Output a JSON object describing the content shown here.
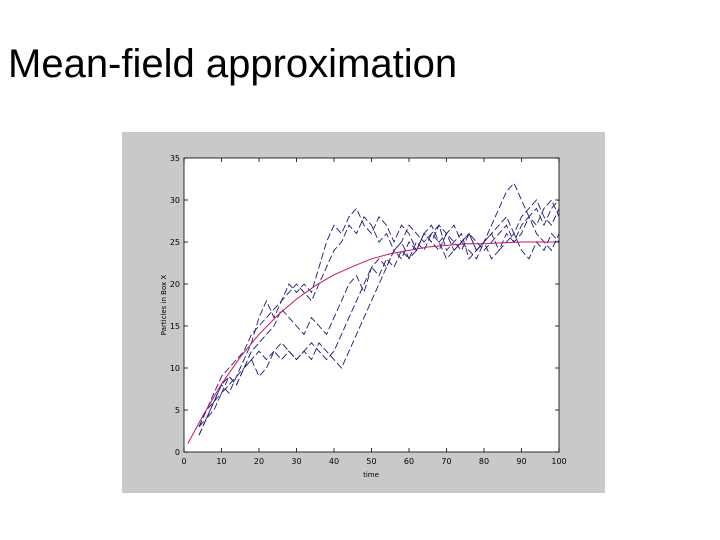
{
  "slide": {
    "title": "Mean-field approximation"
  },
  "chart_data": {
    "type": "line",
    "title": "",
    "xlabel": "time",
    "ylabel": "Particles in Box X",
    "xlim": [
      0,
      100
    ],
    "ylim": [
      0,
      35
    ],
    "xticks": [
      0,
      10,
      20,
      30,
      40,
      50,
      60,
      70,
      80,
      90,
      100
    ],
    "yticks": [
      0,
      5,
      10,
      15,
      20,
      25,
      30,
      35
    ],
    "grid": false,
    "legend": "none",
    "colors": {
      "simulations": "#1a1a7a",
      "mean_field": "#c8185a",
      "panel": "#c9c9c9",
      "plot": "#ffffff"
    },
    "series": [
      {
        "style": "dashed",
        "x": [
          4,
          6,
          8,
          10,
          12,
          14,
          16,
          18,
          20,
          22,
          24,
          26,
          28,
          30,
          32,
          34,
          36,
          38,
          40,
          42,
          44,
          46,
          48,
          50,
          52,
          54,
          56,
          58,
          60,
          62,
          64,
          66,
          68,
          70,
          72,
          74,
          76,
          78,
          80,
          82,
          84,
          86,
          88,
          90,
          92,
          94,
          96,
          98,
          100
        ],
        "y": [
          2,
          4,
          6,
          8,
          7,
          9,
          11,
          13,
          16,
          18,
          16,
          18,
          20,
          19,
          20,
          19,
          22,
          25,
          27,
          26,
          28,
          29,
          27,
          26,
          28,
          27,
          25,
          27,
          26,
          24,
          26,
          27,
          25,
          26,
          27,
          25,
          26,
          24,
          25,
          27,
          29,
          31,
          32,
          30,
          28,
          27,
          29,
          30,
          28
        ]
      },
      {
        "style": "dashed",
        "x": [
          4,
          6,
          8,
          10,
          12,
          14,
          16,
          18,
          20,
          22,
          24,
          26,
          28,
          30,
          32,
          34,
          36,
          38,
          40,
          42,
          44,
          46,
          48,
          50,
          52,
          54,
          56,
          58,
          60,
          62,
          64,
          66,
          68,
          70,
          72,
          74,
          76,
          78,
          80,
          82,
          84,
          86,
          88,
          90,
          92,
          94,
          96,
          98,
          100
        ],
        "y": [
          3,
          5,
          7,
          9,
          10,
          11,
          12,
          14,
          15,
          16,
          17,
          18,
          19,
          20,
          19,
          18,
          20,
          22,
          24,
          25,
          27,
          26,
          28,
          27,
          25,
          26,
          24,
          25,
          27,
          26,
          25,
          26,
          27,
          24,
          25,
          26,
          23,
          24,
          25,
          26,
          27,
          28,
          26,
          28,
          29,
          30,
          28,
          27,
          29
        ]
      },
      {
        "style": "dashed",
        "x": [
          4,
          6,
          8,
          10,
          12,
          14,
          16,
          18,
          20,
          22,
          24,
          26,
          28,
          30,
          32,
          34,
          36,
          38,
          40,
          42,
          44,
          46,
          48,
          50,
          52,
          54,
          56,
          58,
          60,
          62,
          64,
          66,
          68,
          70,
          72,
          74,
          76,
          78,
          80,
          82,
          84,
          86,
          88,
          90,
          92,
          94,
          96,
          98,
          100
        ],
        "y": [
          3,
          4,
          6,
          7,
          9,
          8,
          10,
          12,
          13,
          14,
          15,
          17,
          16,
          15,
          14,
          16,
          15,
          14,
          16,
          18,
          20,
          21,
          19,
          22,
          23,
          22,
          24,
          25,
          23,
          24,
          26,
          25,
          24,
          26,
          25,
          24,
          26,
          25,
          24,
          25,
          26,
          27,
          25,
          26,
          28,
          29,
          27,
          29,
          30
        ]
      },
      {
        "style": "dashed",
        "x": [
          4,
          6,
          8,
          10,
          12,
          14,
          16,
          18,
          20,
          22,
          24,
          26,
          28,
          30,
          32,
          34,
          36,
          38,
          40,
          42,
          44,
          46,
          48,
          50,
          52,
          54,
          56,
          58,
          60,
          62,
          64,
          66,
          68,
          70,
          72,
          74,
          76,
          78,
          80,
          82,
          84,
          86,
          88,
          90,
          92,
          94,
          96,
          98,
          100
        ],
        "y": [
          2,
          4,
          5,
          7,
          8,
          9,
          10,
          11,
          12,
          11,
          12,
          13,
          12,
          11,
          12,
          13,
          12,
          11,
          12,
          14,
          16,
          18,
          20,
          22,
          21,
          23,
          22,
          24,
          23,
          25,
          24,
          26,
          25,
          23,
          24,
          25,
          24,
          23,
          25,
          26,
          24,
          25,
          26,
          24,
          23,
          25,
          24,
          26,
          25
        ]
      },
      {
        "style": "dashed",
        "x": [
          4,
          6,
          8,
          10,
          12,
          14,
          16,
          18,
          20,
          22,
          24,
          26,
          28,
          30,
          32,
          34,
          36,
          38,
          40,
          42,
          44,
          46,
          48,
          50,
          52,
          54,
          56,
          58,
          60,
          62,
          64,
          66,
          68,
          70,
          72,
          74,
          76,
          78,
          80,
          82,
          84,
          86,
          88,
          90,
          92,
          94,
          96,
          98,
          100
        ],
        "y": [
          3,
          5,
          6,
          8,
          9,
          8,
          10,
          11,
          9,
          10,
          12,
          11,
          12,
          11,
          12,
          11,
          13,
          12,
          11,
          10,
          12,
          14,
          16,
          18,
          20,
          22,
          24,
          23,
          25,
          24,
          26,
          25,
          27,
          26,
          24,
          25,
          26,
          24,
          25,
          23,
          24,
          26,
          25,
          27,
          28,
          26,
          25,
          24,
          26
        ]
      },
      {
        "style": "solid",
        "role": "mean-field",
        "x": [
          1,
          5,
          10,
          15,
          20,
          25,
          30,
          35,
          40,
          45,
          50,
          55,
          60,
          65,
          70,
          75,
          80,
          85,
          90,
          95,
          100
        ],
        "y": [
          1,
          4.3,
          8.1,
          11.3,
          14.0,
          16.3,
          18.2,
          19.8,
          21.1,
          22.1,
          23.0,
          23.6,
          24.0,
          24.4,
          24.6,
          24.8,
          24.8,
          24.9,
          25.0,
          25.0,
          25.0
        ]
      }
    ]
  }
}
